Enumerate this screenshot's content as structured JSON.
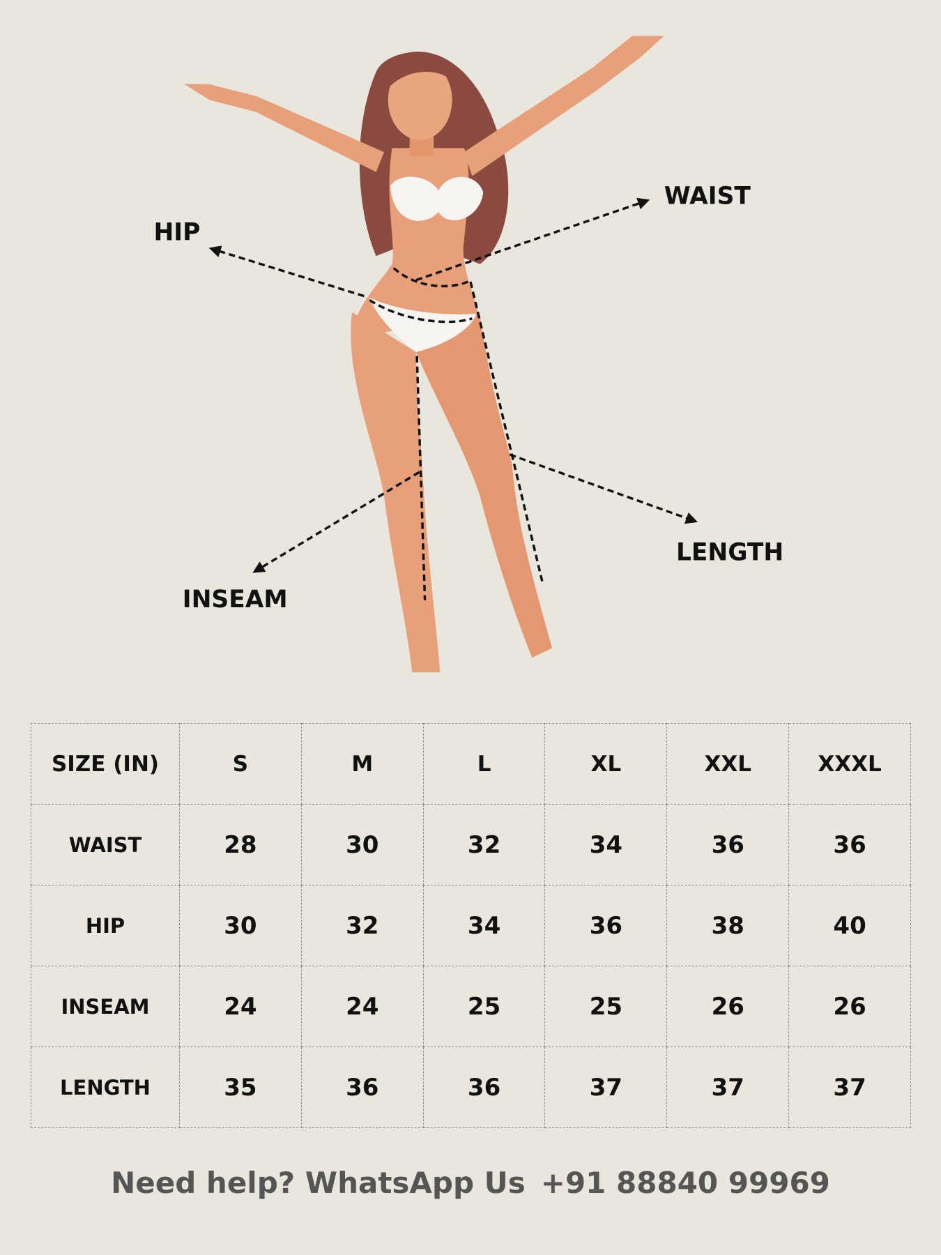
{
  "colors": {
    "background": "#e9e7dd",
    "skin": "#e8a07a",
    "hair": "#8a4a3f",
    "garment": "#f7f5f2",
    "text": "#111111",
    "footer_text": "#555555"
  },
  "figure": {
    "labels": {
      "waist": "WAIST",
      "hip": "HIP",
      "length": "LENGTH",
      "inseam": "INSEAM"
    }
  },
  "table": {
    "header": [
      "SIZE (IN)",
      "S",
      "M",
      "L",
      "XL",
      "XXL",
      "XXXL"
    ],
    "rows": [
      {
        "label": "WAIST",
        "values": [
          "28",
          "30",
          "32",
          "34",
          "36",
          "36"
        ]
      },
      {
        "label": "HIP",
        "values": [
          "30",
          "32",
          "34",
          "36",
          "38",
          "40"
        ]
      },
      {
        "label": "INSEAM",
        "values": [
          "24",
          "24",
          "25",
          "25",
          "26",
          "26"
        ]
      },
      {
        "label": "LENGTH",
        "values": [
          "35",
          "36",
          "36",
          "37",
          "37",
          "37"
        ]
      }
    ]
  },
  "footer": {
    "help_text": "Need help? WhatsApp Us",
    "phone": "+91 88840 99969"
  }
}
